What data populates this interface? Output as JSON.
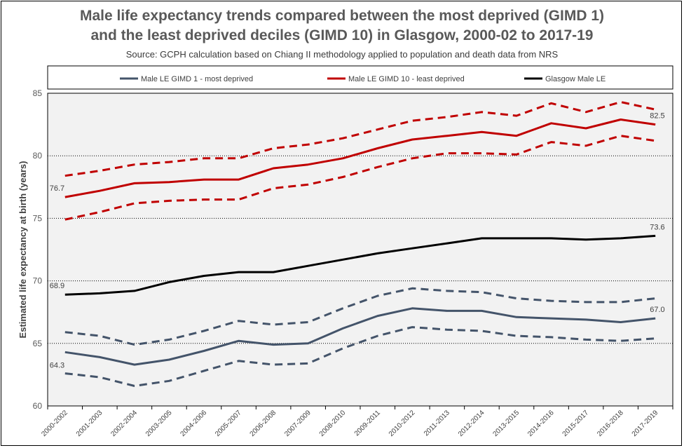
{
  "chart_data": {
    "type": "line",
    "title_line1": "Male life expectancy trends compared between the most deprived (GIMD 1)",
    "title_line2": "and the least deprived deciles (GIMD 10) in Glasgow, 2000-02 to 2017-19",
    "subtitle": "Source: GCPH calculation based on Chiang II methodology applied to population and death data from NRS",
    "ylabel": "Estimated life expectancy at birth (years)",
    "xlabel": "",
    "ylim": [
      60,
      85
    ],
    "yticks": [
      "60",
      "65",
      "70",
      "75",
      "80",
      "85"
    ],
    "grid": "horizontal dotted",
    "legend_position": "top",
    "categories": [
      "2000-2002",
      "2001-2003",
      "2002-2004",
      "2003-2005",
      "2004-2006",
      "2005-2007",
      "2006-2008",
      "2007-2009",
      "2008-2010",
      "2009-2011",
      "2010-2012",
      "2011-2013",
      "2012-2014",
      "2013-2015",
      "2014-2016",
      "2015-2017",
      "2016-2018",
      "2017-2019"
    ],
    "series": [
      {
        "name": "Male LE GIMD 1 - most deprived",
        "color": "#44546a",
        "style": "solid",
        "values": [
          64.3,
          63.9,
          63.3,
          63.7,
          64.4,
          65.2,
          64.9,
          65.0,
          66.2,
          67.2,
          67.8,
          67.6,
          67.6,
          67.1,
          67.0,
          66.9,
          66.7,
          67.0
        ]
      },
      {
        "name": "GIMD 1 upper CI",
        "color": "#44546a",
        "style": "dashed",
        "legend": false,
        "values": [
          65.9,
          65.6,
          64.9,
          65.3,
          66.0,
          66.8,
          66.5,
          66.7,
          67.8,
          68.8,
          69.4,
          69.2,
          69.1,
          68.6,
          68.4,
          68.3,
          68.3,
          68.6
        ]
      },
      {
        "name": "GIMD 1 lower CI",
        "color": "#44546a",
        "style": "dashed",
        "legend": false,
        "values": [
          62.6,
          62.3,
          61.6,
          62.0,
          62.8,
          63.6,
          63.3,
          63.4,
          64.6,
          65.6,
          66.3,
          66.1,
          66.0,
          65.6,
          65.5,
          65.3,
          65.2,
          65.4
        ]
      },
      {
        "name": "Male LE GIMD 10 - least deprived",
        "color": "#c00000",
        "style": "solid",
        "values": [
          76.7,
          77.2,
          77.8,
          77.9,
          78.1,
          78.1,
          79.0,
          79.3,
          79.8,
          80.6,
          81.3,
          81.6,
          81.9,
          81.6,
          82.6,
          82.2,
          82.9,
          82.5
        ]
      },
      {
        "name": "GIMD 10 upper CI",
        "color": "#c00000",
        "style": "dashed",
        "legend": false,
        "values": [
          78.4,
          78.8,
          79.3,
          79.5,
          79.8,
          79.8,
          80.6,
          80.9,
          81.4,
          82.1,
          82.8,
          83.1,
          83.5,
          83.2,
          84.2,
          83.5,
          84.3,
          83.7
        ]
      },
      {
        "name": "GIMD 10 lower CI",
        "color": "#c00000",
        "style": "dashed",
        "legend": false,
        "values": [
          74.9,
          75.5,
          76.2,
          76.4,
          76.5,
          76.5,
          77.4,
          77.7,
          78.3,
          79.1,
          79.8,
          80.2,
          80.2,
          80.1,
          81.1,
          80.8,
          81.6,
          81.2
        ]
      },
      {
        "name": "Glasgow Male LE",
        "color": "#000000",
        "style": "solid",
        "values": [
          68.9,
          69.0,
          69.2,
          69.9,
          70.4,
          70.7,
          70.7,
          71.2,
          71.7,
          72.2,
          72.6,
          73.0,
          73.4,
          73.4,
          73.4,
          73.3,
          73.4,
          73.6
        ]
      }
    ],
    "data_labels": [
      {
        "series": 3,
        "index": 0,
        "text": "76.7"
      },
      {
        "series": 3,
        "index": 17,
        "text": "82.5"
      },
      {
        "series": 6,
        "index": 0,
        "text": "68.9"
      },
      {
        "series": 6,
        "index": 17,
        "text": "73.6"
      },
      {
        "series": 0,
        "index": 0,
        "text": "64.3"
      },
      {
        "series": 0,
        "index": 17,
        "text": "67.0"
      }
    ]
  }
}
